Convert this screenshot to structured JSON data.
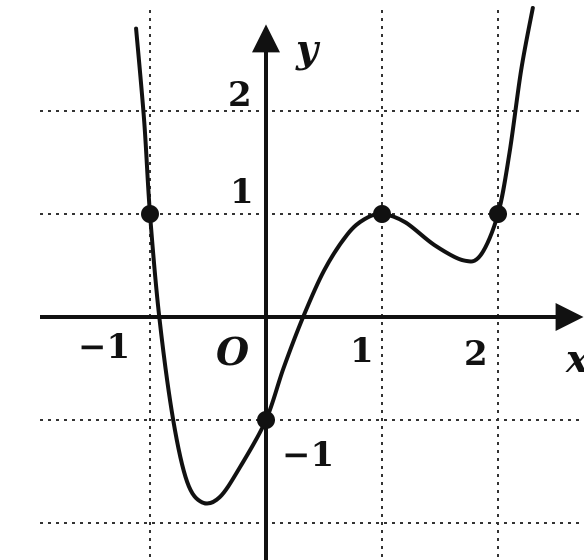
{
  "labels": {
    "y_axis": "y",
    "x_axis": "x",
    "origin": "O",
    "x_ticks": [
      "−1",
      "1",
      "2"
    ],
    "y_ticks": [
      "2",
      "1",
      "−1"
    ]
  },
  "chart_data": {
    "type": "line",
    "grid": true,
    "axis_color": "#111111",
    "curve_color": "#111111",
    "marked_points": [
      {
        "x": -1,
        "y": 1
      },
      {
        "x": 0,
        "y": -1
      },
      {
        "x": 1,
        "y": 1
      },
      {
        "x": 2,
        "y": 1
      }
    ],
    "curve": [
      {
        "x": -1.12,
        "y": 2.8
      },
      {
        "x": -1.05,
        "y": 1.9
      },
      {
        "x": -1.0,
        "y": 1.0
      },
      {
        "x": -0.92,
        "y": 0.0
      },
      {
        "x": -0.8,
        "y": -1.0
      },
      {
        "x": -0.68,
        "y": -1.6
      },
      {
        "x": -0.55,
        "y": -1.8
      },
      {
        "x": -0.4,
        "y": -1.75
      },
      {
        "x": -0.22,
        "y": -1.45
      },
      {
        "x": 0.0,
        "y": -1.0
      },
      {
        "x": 0.15,
        "y": -0.5
      },
      {
        "x": 0.32,
        "y": 0.0
      },
      {
        "x": 0.5,
        "y": 0.45
      },
      {
        "x": 0.7,
        "y": 0.8
      },
      {
        "x": 0.85,
        "y": 0.95
      },
      {
        "x": 1.0,
        "y": 1.0
      },
      {
        "x": 1.2,
        "y": 0.92
      },
      {
        "x": 1.45,
        "y": 0.7
      },
      {
        "x": 1.7,
        "y": 0.55
      },
      {
        "x": 1.85,
        "y": 0.6
      },
      {
        "x": 2.0,
        "y": 1.0
      },
      {
        "x": 2.1,
        "y": 1.6
      },
      {
        "x": 2.2,
        "y": 2.4
      },
      {
        "x": 2.3,
        "y": 3.0
      }
    ]
  }
}
